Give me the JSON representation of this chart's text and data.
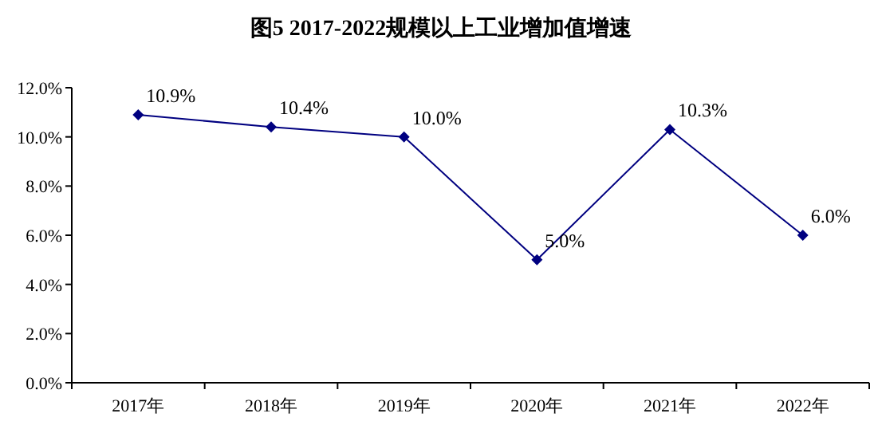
{
  "chart_data": {
    "type": "line",
    "title": "图5 2017-2022规模以上工业增加值增速",
    "categories": [
      "2017年",
      "2018年",
      "2019年",
      "2020年",
      "2021年",
      "2022年"
    ],
    "series": [
      {
        "color": "#000080",
        "values": [
          10.9,
          10.4,
          10.0,
          5.0,
          10.3,
          6.0
        ],
        "value_labels": [
          "10.9%",
          "10.4%",
          "10.0%",
          "5.0%",
          "10.3%",
          "6.0%"
        ]
      }
    ],
    "ylim": [
      0,
      12
    ],
    "yticks": [
      {
        "value": 0,
        "label": "0.0%"
      },
      {
        "value": 2,
        "label": "2.0%"
      },
      {
        "value": 4,
        "label": "4.0%"
      },
      {
        "value": 6,
        "label": "6.0%"
      },
      {
        "value": 8,
        "label": "8.0%"
      },
      {
        "value": 10,
        "label": "10.0%"
      },
      {
        "value": 12,
        "label": "12.0%"
      }
    ],
    "marker": "diamond",
    "line_style": "solid"
  }
}
